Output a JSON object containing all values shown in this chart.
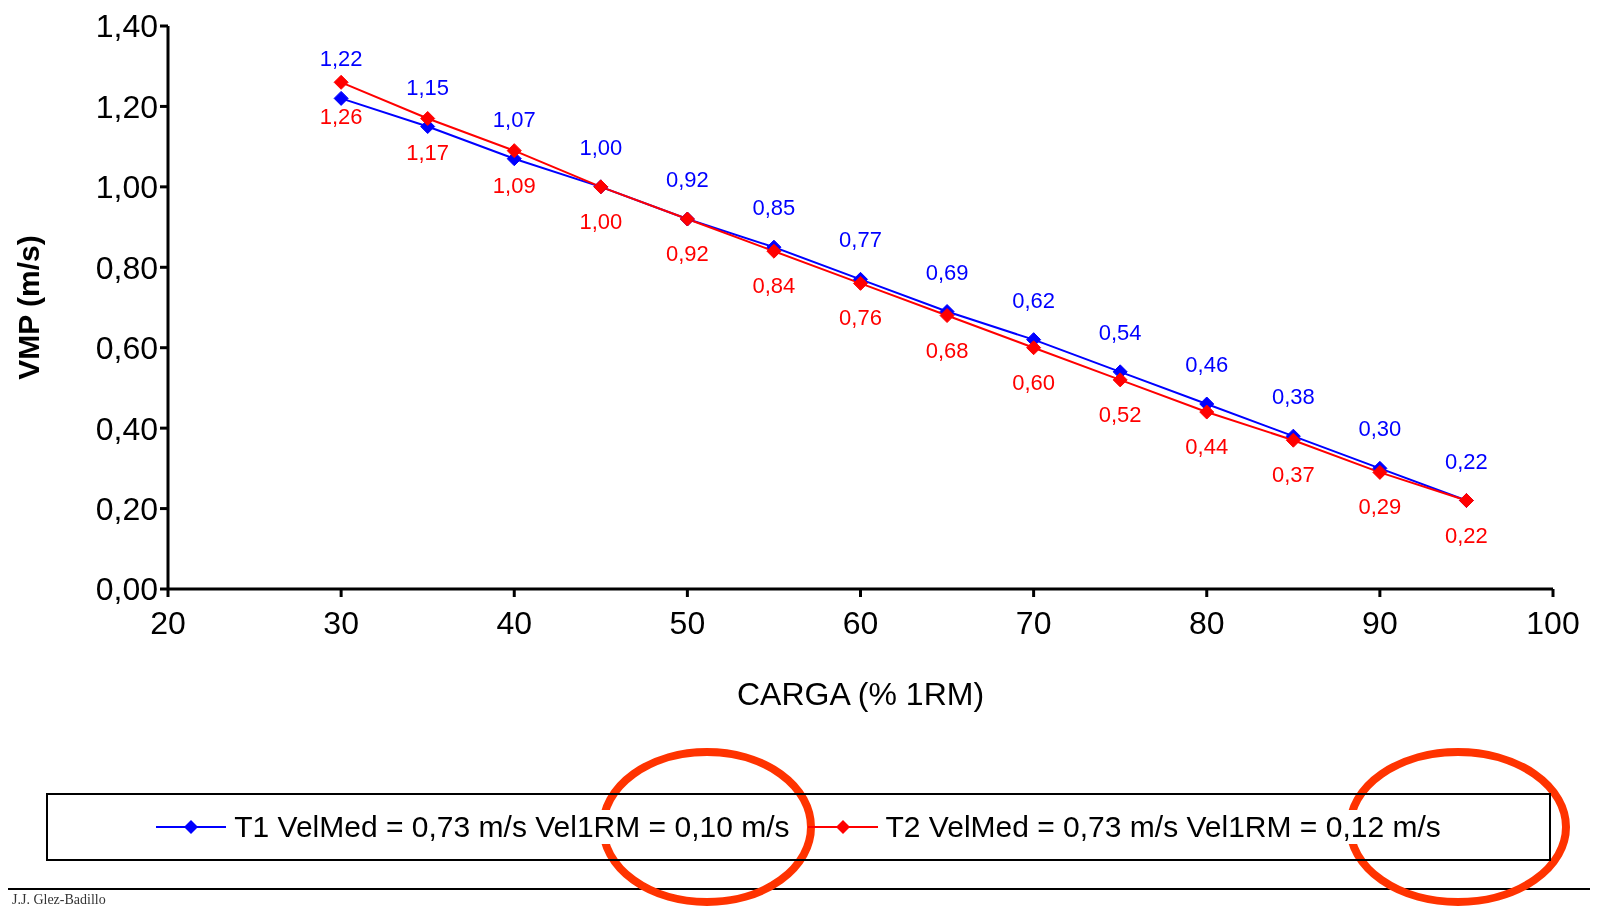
{
  "chart_data": {
    "type": "line",
    "xlabel": "CARGA (% 1RM)",
    "ylabel": "VMP (m/s)",
    "x": [
      30,
      35,
      40,
      45,
      50,
      55,
      60,
      65,
      70,
      75,
      80,
      85,
      90,
      95
    ],
    "series": [
      {
        "name": "T1 VelMed = 0,73 m/s Vel1RM = 0,10 m/s",
        "color": "#0000ff",
        "values": [
          1.22,
          1.15,
          1.07,
          1.0,
          0.92,
          0.85,
          0.77,
          0.69,
          0.62,
          0.54,
          0.46,
          0.38,
          0.3,
          0.22
        ],
        "value_labels": [
          "1,22",
          "1,15",
          "1,07",
          "1,00",
          "0,92",
          "0,85",
          "0,77",
          "0,69",
          "0,62",
          "0,54",
          "0,46",
          "0,38",
          "0,30",
          "0,22"
        ]
      },
      {
        "name": "T2 VelMed = 0,73 m/s Vel1RM = 0,12 m/s",
        "color": "#ff0000",
        "values": [
          1.26,
          1.17,
          1.09,
          1.0,
          0.92,
          0.84,
          0.76,
          0.68,
          0.6,
          0.52,
          0.44,
          0.37,
          0.29,
          0.22
        ],
        "value_labels": [
          "1,26",
          "1,17",
          "1,09",
          "1,00",
          "0,92",
          "0,84",
          "0,76",
          "0,68",
          "0,60",
          "0,52",
          "0,44",
          "0,37",
          "0,29",
          "0,22"
        ]
      }
    ],
    "xlim": [
      20,
      100
    ],
    "xticks": [
      20,
      30,
      40,
      50,
      60,
      70,
      80,
      90,
      100
    ],
    "ylim": [
      0,
      1.4
    ],
    "yticks": [
      {
        "value": 0,
        "label": "0,00"
      },
      {
        "value": 0.2,
        "label": "0,20"
      },
      {
        "value": 0.4,
        "label": "0,40"
      },
      {
        "value": 0.6,
        "label": "0,60"
      },
      {
        "value": 0.8,
        "label": "0,80"
      },
      {
        "value": 1.0,
        "label": "1,00"
      },
      {
        "value": 1.2,
        "label": "1,20"
      },
      {
        "value": 1.4,
        "label": "1,40"
      }
    ],
    "annotations": [
      "J.J. Glez-Badillo"
    ],
    "legend": "bottom",
    "grid": false,
    "marker": "diamond",
    "line_style": "solid"
  }
}
